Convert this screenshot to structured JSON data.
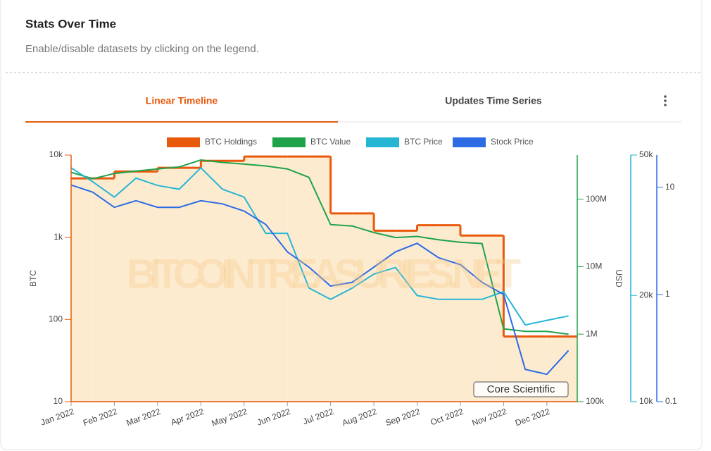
{
  "header": {
    "title": "Stats Over Time",
    "subtitle": "Enable/disable datasets by clicking on the legend."
  },
  "tabs": [
    "Linear Timeline",
    "Updates Time Series"
  ],
  "chart_data": {
    "type": "line",
    "watermark": "BITCOINTREASURIES.NET",
    "annotation": "Core Scientific",
    "ylabel": "BTC",
    "y2label": "USD",
    "log_scale": true,
    "categories": [
      "Jan 2022",
      null,
      "Feb 2022",
      null,
      "Mar 2022",
      null,
      "Apr 2022",
      null,
      "May 2022",
      null,
      "Jun 2022",
      null,
      "Jul 2022",
      null,
      "Aug 2022",
      null,
      "Sep 2022",
      null,
      "Oct 2022",
      null,
      "Nov 2022",
      null,
      "Dec 2022",
      null
    ],
    "ylim": [
      10,
      10000
    ],
    "yticks": [
      {
        "value": 10000,
        "label": "10k"
      },
      {
        "value": 1000,
        "label": "1k"
      },
      100,
      10
    ],
    "y2lim": [
      100000,
      450000000
    ],
    "y2ticks": [
      {
        "value": 100000000,
        "label": "100M"
      },
      {
        "value": 10000000,
        "label": "10M"
      },
      {
        "value": 1000000,
        "label": "1M"
      },
      {
        "value": 100000,
        "label": "100k"
      }
    ],
    "y3lim": [
      10000,
      50000
    ],
    "y3ticks": [
      {
        "value": 50000,
        "label": "50k"
      },
      {
        "value": 20000,
        "label": "20k"
      },
      {
        "value": 10000,
        "label": "10k"
      }
    ],
    "y4lim": [
      0.1,
      20
    ],
    "y4ticks": [
      10,
      1,
      0.1
    ],
    "series": [
      {
        "name": "BTC Holdings",
        "color": "#e8590c",
        "fill": "#fdebd0",
        "step": true,
        "axis": "y",
        "values": [
          5200,
          5200,
          6300,
          6300,
          7000,
          7000,
          8500,
          8500,
          9600,
          9600,
          9600,
          9600,
          1950,
          1950,
          1200,
          1200,
          1400,
          1400,
          1050,
          1050,
          62,
          62,
          62,
          62
        ]
      },
      {
        "name": "BTC Value",
        "color": "#1fa34a",
        "axis": "y2",
        "values": [
          250000000,
          200000000,
          240000000,
          260000000,
          280000000,
          300000000,
          380000000,
          350000000,
          330000000,
          310000000,
          280000000,
          210000000,
          42000000,
          40000000,
          32000000,
          27000000,
          28000000,
          25000000,
          23000000,
          22000000,
          1200000,
          1100000,
          1100000,
          1000000
        ]
      },
      {
        "name": "BTC Price",
        "color": "#26b6d4",
        "axis": "y3",
        "values": [
          46000,
          42000,
          38000,
          43000,
          41000,
          40000,
          46000,
          40000,
          38000,
          30000,
          30000,
          21000,
          19500,
          21000,
          23000,
          24000,
          20000,
          19500,
          19500,
          19500,
          20500,
          16500,
          17000,
          17500
        ]
      },
      {
        "name": "Stock Price",
        "color": "#2d6be4",
        "axis": "y4",
        "values": [
          10.5,
          9,
          6.5,
          7.5,
          6.5,
          6.5,
          7.5,
          7,
          6,
          4.5,
          2.5,
          1.8,
          1.2,
          1.3,
          1.8,
          2.5,
          3,
          2.2,
          1.9,
          1.3,
          1,
          0.2,
          0.18,
          0.3
        ]
      }
    ]
  }
}
